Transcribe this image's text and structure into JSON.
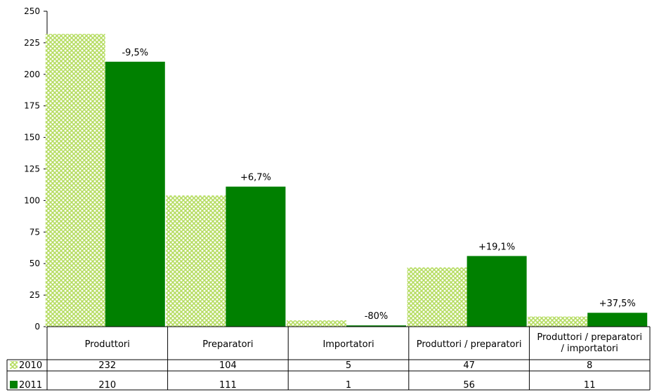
{
  "chart_data": {
    "type": "bar",
    "categories": [
      [
        "Produttori"
      ],
      [
        "Preparatori"
      ],
      [
        "Importatori"
      ],
      [
        "Produttori / preparatori"
      ],
      [
        "Produttori / preparatori",
        "/ importatori"
      ]
    ],
    "series": [
      {
        "name": "2010",
        "values": [
          232,
          104,
          5,
          47,
          8
        ],
        "color": "#b5dc60",
        "pattern": "crosshatch"
      },
      {
        "name": "2011",
        "values": [
          210,
          111,
          1,
          56,
          11
        ],
        "color": "#008000",
        "pattern": "solid"
      }
    ],
    "changes": [
      "-9,5%",
      "+6,7%",
      "-80%",
      "+19,1%",
      "+37,5%"
    ],
    "ylim": [
      0,
      250
    ],
    "yticks": [
      0,
      25,
      50,
      75,
      100,
      125,
      150,
      175,
      200,
      225,
      250
    ],
    "grid": false,
    "legend": "data-table-left",
    "data_table": true
  }
}
